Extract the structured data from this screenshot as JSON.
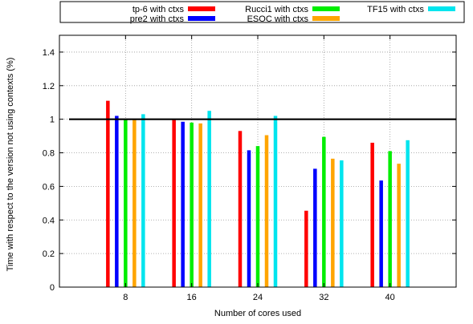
{
  "chart_data": {
    "type": "bar",
    "title": "",
    "xlabel": "Number of cores used",
    "ylabel": "Time with respect to the version not using contexts (%)",
    "categories": [
      "8",
      "16",
      "24",
      "32",
      "40"
    ],
    "ylim": [
      0,
      1.5
    ],
    "yticks": [
      "0",
      "0.2",
      "0.4",
      "0.6",
      "0.8",
      "1",
      "1.2",
      "1.4"
    ],
    "reference_line": 1,
    "grid": true,
    "legend_position": "top",
    "series": [
      {
        "name": "tp-6 with ctxs",
        "color": "#ff0000",
        "values": [
          1.11,
          1.0,
          0.93,
          0.455,
          0.86
        ]
      },
      {
        "name": "pre2 with ctxs",
        "color": "#0000ff",
        "values": [
          1.02,
          0.985,
          0.815,
          0.705,
          0.635
        ]
      },
      {
        "name": "Rucci1 with ctxs",
        "color": "#00ee00",
        "values": [
          1.0,
          0.98,
          0.84,
          0.895,
          0.81
        ]
      },
      {
        "name": "ESOC with ctxs",
        "color": "#ffa500",
        "values": [
          1.0,
          0.975,
          0.905,
          0.765,
          0.735
        ]
      },
      {
        "name": "TF15 with ctxs",
        "color": "#00e5ee",
        "values": [
          1.03,
          1.05,
          1.02,
          0.755,
          0.875
        ]
      }
    ]
  }
}
